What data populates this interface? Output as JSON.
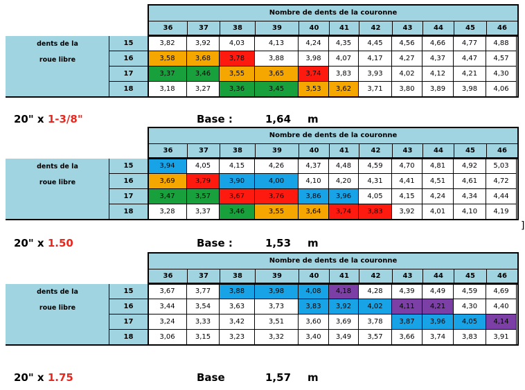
{
  "columns": [
    "36",
    "37",
    "38",
    "39",
    "40",
    "41",
    "42",
    "43",
    "44",
    "45",
    "46"
  ],
  "header_title": "Nombre de dents de la couronne",
  "row_label_line1": "dents de la",
  "row_label_line2": "roue libre",
  "tables": [
    {
      "rows": [
        {
          "key": "15",
          "cells": [
            [
              "3,82",
              ""
            ],
            [
              "3,92",
              ""
            ],
            [
              "4,03",
              ""
            ],
            [
              "4,13",
              ""
            ],
            [
              "4,24",
              ""
            ],
            [
              "4,35",
              ""
            ],
            [
              "4,45",
              ""
            ],
            [
              "4,56",
              ""
            ],
            [
              "4,66",
              ""
            ],
            [
              "4,77",
              ""
            ],
            [
              "4,88",
              ""
            ]
          ]
        },
        {
          "key": "16",
          "cells": [
            [
              "3,58",
              "orange"
            ],
            [
              "3,68",
              "orange"
            ],
            [
              "3,78",
              "red"
            ],
            [
              "3,88",
              ""
            ],
            [
              "3,98",
              ""
            ],
            [
              "4,07",
              ""
            ],
            [
              "4,17",
              ""
            ],
            [
              "4,27",
              ""
            ],
            [
              "4,37",
              ""
            ],
            [
              "4,47",
              ""
            ],
            [
              "4,57",
              ""
            ]
          ]
        },
        {
          "key": "17",
          "cells": [
            [
              "3,37",
              "green"
            ],
            [
              "3,46",
              "green"
            ],
            [
              "3,55",
              "orange"
            ],
            [
              "3,65",
              "orange"
            ],
            [
              "3,74",
              "red"
            ],
            [
              "3,83",
              ""
            ],
            [
              "3,93",
              ""
            ],
            [
              "4,02",
              ""
            ],
            [
              "4,12",
              ""
            ],
            [
              "4,21",
              ""
            ],
            [
              "4,30",
              ""
            ]
          ]
        },
        {
          "key": "18",
          "cells": [
            [
              "3,18",
              ""
            ],
            [
              "3,27",
              ""
            ],
            [
              "3,36",
              "green"
            ],
            [
              "3,45",
              "green"
            ],
            [
              "3,53",
              "orange"
            ],
            [
              "3,62",
              "orange"
            ],
            [
              "3,71",
              ""
            ],
            [
              "3,80",
              ""
            ],
            [
              "3,89",
              ""
            ],
            [
              "3,98",
              ""
            ],
            [
              "4,06",
              ""
            ]
          ]
        }
      ],
      "tire_prefix": "20\" x ",
      "tire_size": "1-3/8\"",
      "base_label": "Base :",
      "base_value": "1,64",
      "base_unit": "m"
    },
    {
      "rows": [
        {
          "key": "15",
          "cells": [
            [
              "3,94",
              "blue"
            ],
            [
              "4,05",
              ""
            ],
            [
              "4,15",
              ""
            ],
            [
              "4,26",
              ""
            ],
            [
              "4,37",
              ""
            ],
            [
              "4,48",
              ""
            ],
            [
              "4,59",
              ""
            ],
            [
              "4,70",
              ""
            ],
            [
              "4,81",
              ""
            ],
            [
              "4,92",
              ""
            ],
            [
              "5,03",
              ""
            ]
          ]
        },
        {
          "key": "16",
          "cells": [
            [
              "3,69",
              "orange"
            ],
            [
              "3,79",
              "red"
            ],
            [
              "3,90",
              "blue"
            ],
            [
              "4,00",
              "blue"
            ],
            [
              "4,10",
              ""
            ],
            [
              "4,20",
              ""
            ],
            [
              "4,31",
              ""
            ],
            [
              "4,41",
              ""
            ],
            [
              "4,51",
              ""
            ],
            [
              "4,61",
              ""
            ],
            [
              "4,72",
              ""
            ]
          ]
        },
        {
          "key": "17",
          "cells": [
            [
              "3,47",
              "green"
            ],
            [
              "3,57",
              "green"
            ],
            [
              "3,67",
              "red"
            ],
            [
              "3,76",
              "red"
            ],
            [
              "3,86",
              "blue"
            ],
            [
              "3,96",
              "blue"
            ],
            [
              "4,05",
              ""
            ],
            [
              "4,15",
              ""
            ],
            [
              "4,24",
              ""
            ],
            [
              "4,34",
              ""
            ],
            [
              "4,44",
              ""
            ]
          ]
        },
        {
          "key": "18",
          "cells": [
            [
              "3,28",
              ""
            ],
            [
              "3,37",
              ""
            ],
            [
              "3,46",
              "green"
            ],
            [
              "3,55",
              "orange"
            ],
            [
              "3,64",
              "orange"
            ],
            [
              "3,74",
              "red"
            ],
            [
              "3,83",
              "red"
            ],
            [
              "3,92",
              ""
            ],
            [
              "4,01",
              ""
            ],
            [
              "4,10",
              ""
            ],
            [
              "4,19",
              ""
            ]
          ]
        }
      ],
      "tire_prefix": "20\" x ",
      "tire_size": "1.50",
      "base_label": "Base :",
      "base_value": "1,53",
      "base_unit": "m"
    },
    {
      "rows": [
        {
          "key": "15",
          "cells": [
            [
              "3,67",
              ""
            ],
            [
              "3,77",
              ""
            ],
            [
              "3,88",
              "blue"
            ],
            [
              "3,98",
              "blue"
            ],
            [
              "4,08",
              "blue"
            ],
            [
              "4,18",
              "purple"
            ],
            [
              "4,28",
              ""
            ],
            [
              "4,39",
              ""
            ],
            [
              "4,49",
              ""
            ],
            [
              "4,59",
              ""
            ],
            [
              "4,69",
              ""
            ]
          ]
        },
        {
          "key": "16",
          "cells": [
            [
              "3,44",
              ""
            ],
            [
              "3,54",
              ""
            ],
            [
              "3,63",
              ""
            ],
            [
              "3,73",
              ""
            ],
            [
              "3,83",
              "blue"
            ],
            [
              "3,92",
              "blue"
            ],
            [
              "4,02",
              "blue"
            ],
            [
              "4,11",
              "purple"
            ],
            [
              "4,21",
              "purple"
            ],
            [
              "4,30",
              ""
            ],
            [
              "4,40",
              ""
            ]
          ]
        },
        {
          "key": "17",
          "cells": [
            [
              "3,24",
              ""
            ],
            [
              "3,33",
              ""
            ],
            [
              "3,42",
              ""
            ],
            [
              "3,51",
              ""
            ],
            [
              "3,60",
              ""
            ],
            [
              "3,69",
              ""
            ],
            [
              "3,78",
              ""
            ],
            [
              "3,87",
              "blue"
            ],
            [
              "3,96",
              "blue"
            ],
            [
              "4,05",
              "blue"
            ],
            [
              "4,14",
              "purple"
            ]
          ]
        },
        {
          "key": "18",
          "cells": [
            [
              "3,06",
              ""
            ],
            [
              "3,15",
              ""
            ],
            [
              "3,23",
              ""
            ],
            [
              "3,32",
              ""
            ],
            [
              "3,40",
              ""
            ],
            [
              "3,49",
              ""
            ],
            [
              "3,57",
              ""
            ],
            [
              "3,66",
              ""
            ],
            [
              "3,74",
              ""
            ],
            [
              "3,83",
              ""
            ],
            [
              "3,91",
              ""
            ]
          ]
        }
      ],
      "tire_prefix": "20\" x ",
      "tire_size": "1.75",
      "base_label": "Base",
      "base_value": "1,57",
      "base_unit": "m"
    }
  ],
  "stray_mark": "]"
}
